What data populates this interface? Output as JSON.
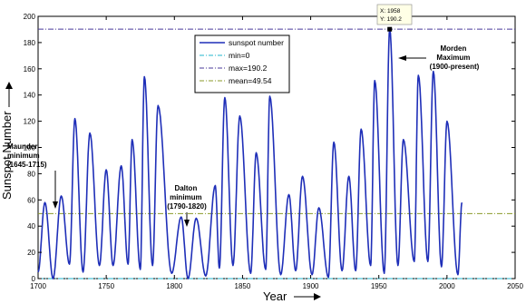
{
  "chart_data": {
    "type": "line",
    "title": "",
    "xlabel": "Year",
    "ylabel": "Sunspot Number",
    "xlim": [
      1700,
      2050
    ],
    "ylim": [
      0,
      200
    ],
    "xticks": [
      1700,
      1750,
      1800,
      1850,
      1900,
      1950,
      2000,
      2050
    ],
    "yticks": [
      0,
      20,
      40,
      60,
      80,
      100,
      120,
      140,
      160,
      180,
      200
    ],
    "grid": false,
    "legend_position": "top-center",
    "series": [
      {
        "name": "sunspot number",
        "color": "#1f2fb8",
        "peaks": [
          [
            1705,
            58
          ],
          [
            1717,
            63
          ],
          [
            1727,
            122
          ],
          [
            1738,
            111
          ],
          [
            1750,
            83
          ],
          [
            1761,
            86
          ],
          [
            1769,
            106
          ],
          [
            1778,
            154
          ],
          [
            1788,
            132
          ],
          [
            1805,
            47
          ],
          [
            1816,
            46
          ],
          [
            1830,
            71
          ],
          [
            1837,
            138
          ],
          [
            1848,
            124
          ],
          [
            1860,
            96
          ],
          [
            1870,
            139
          ],
          [
            1884,
            64
          ],
          [
            1894,
            78
          ],
          [
            1906,
            54
          ],
          [
            1917,
            104
          ],
          [
            1928,
            78
          ],
          [
            1937,
            114
          ],
          [
            1947,
            151
          ],
          [
            1958,
            190.2
          ],
          [
            1968,
            106
          ],
          [
            1979,
            155
          ],
          [
            1990,
            158
          ],
          [
            2000,
            120
          ],
          [
            2011,
            58
          ]
        ],
        "troughs": [
          [
            1700,
            5
          ],
          [
            1711,
            0
          ],
          [
            1723,
            11
          ],
          [
            1733,
            5
          ],
          [
            1745,
            10
          ],
          [
            1755,
            10
          ],
          [
            1766,
            11
          ],
          [
            1775,
            7
          ],
          [
            1784,
            10
          ],
          [
            1798,
            4
          ],
          [
            1810,
            0
          ],
          [
            1823,
            2
          ],
          [
            1833,
            8
          ],
          [
            1843,
            10
          ],
          [
            1856,
            4
          ],
          [
            1867,
            7
          ],
          [
            1878,
            3
          ],
          [
            1889,
            6
          ],
          [
            1901,
            3
          ],
          [
            1913,
            1
          ],
          [
            1923,
            6
          ],
          [
            1933,
            6
          ],
          [
            1944,
            10
          ],
          [
            1954,
            4
          ],
          [
            1964,
            10
          ],
          [
            1976,
            13
          ],
          [
            1986,
            13
          ],
          [
            1996,
            9
          ],
          [
            2008,
            3
          ]
        ]
      },
      {
        "name": "min=0",
        "y": 0,
        "color": "#22b5cc",
        "style": "dashdot"
      },
      {
        "name": "max=190.2",
        "y": 190.2,
        "color": "#4a3a9a",
        "style": "dashdot"
      },
      {
        "name": "mean=49.54",
        "y": 49.54,
        "color": "#8a9a2a",
        "style": "dashdot"
      }
    ],
    "datatip": {
      "x_text": "X: 1958",
      "y_text": "Y: 190.2",
      "x": 1958,
      "y": 190.2
    },
    "annotations": {
      "maunder": {
        "lines": [
          "Maunder",
          "minimum",
          "(1645-1715)"
        ],
        "x": 1710,
        "y": 48
      },
      "dalton": {
        "lines": [
          "Dalton",
          "minimum",
          "(1790-1820)"
        ],
        "x": 1810,
        "y": 40
      },
      "modern": {
        "lines": [
          "Morden",
          "Maximum",
          "(1900-present)"
        ],
        "x": 1960,
        "y": 165
      }
    }
  }
}
